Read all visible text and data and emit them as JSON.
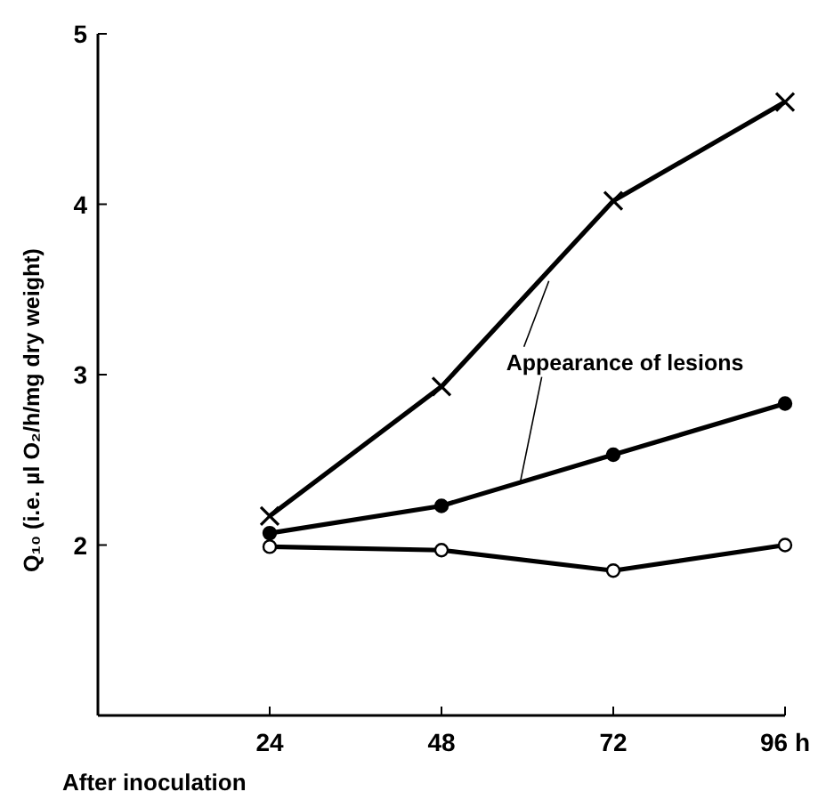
{
  "chart_data": {
    "type": "line",
    "xlabel": "After inoculation",
    "ylabel": "Q₁₀ (i.e. µl O₂/h/mg dry weight)",
    "x": [
      24,
      48,
      72,
      96
    ],
    "xlim": [
      0,
      96
    ],
    "xticks": [
      24,
      48,
      72,
      {
        "value": 96,
        "label": "96 h"
      }
    ],
    "ylim": [
      1,
      5
    ],
    "yticks": [
      2,
      3,
      4,
      5
    ],
    "grid": false,
    "series": [
      {
        "color": "#000000",
        "marker": "cross",
        "values": [
          2.17,
          2.93,
          4.02,
          4.6
        ]
      },
      {
        "color": "#000000",
        "marker": "circle",
        "values": [
          2.07,
          2.23,
          2.53,
          2.83
        ]
      },
      {
        "color": "#000000",
        "marker": "circle",
        "values": [
          1.99,
          1.97,
          1.85,
          2.0
        ]
      }
    ],
    "annotations": [
      {
        "text": "Appearance of lesions",
        "x": 63,
        "y": 3.55
      }
    ]
  }
}
